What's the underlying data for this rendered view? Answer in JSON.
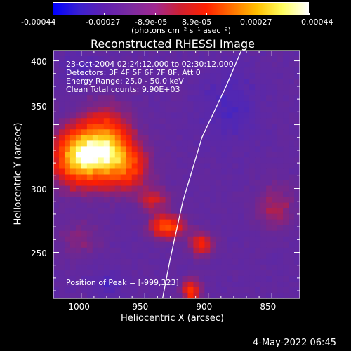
{
  "colorbar": {
    "tick_labels": [
      "-0.00044",
      "-0.00027",
      "-8.9e-05",
      "8.9e-05",
      "0.00027",
      "0.00044"
    ],
    "units_label": "(photons cm⁻² s⁻¹ asec⁻²)",
    "gradient": [
      "#0000ff",
      "#3a20d0",
      "#6020b0",
      "#7a2aa0",
      "#a02890",
      "#d02030",
      "#ff2000",
      "#ff7000",
      "#ffc000",
      "#ffff60",
      "#ffffff"
    ]
  },
  "plot": {
    "title": "Reconstructed RHESSI Image",
    "xlabel": "Heliocentric X (arcsec)",
    "ylabel": "Heliocentric Y (arcsec)",
    "x_ticks": [
      "-1000",
      "-950",
      "-900",
      "-850"
    ],
    "y_ticks": [
      "400",
      "350",
      "300",
      "250"
    ],
    "xlim": [
      -1022,
      -828
    ],
    "ylim": [
      214,
      408
    ],
    "info_lines": [
      "23-Oct-2004 02:24:12.000 to 02:30:12.000",
      "Detectors: 3F 4F 5F 6F 7F 8F, Att 0",
      "Energy Range: 25.0 - 50.0 keV",
      "Clean    Total counts: 9.90E+03"
    ],
    "peak_label": "Position of Peak = [-999,323]",
    "peak": [
      -999,
      323
    ]
  },
  "footer": {
    "timestamp": "4-May-2022 06:45"
  },
  "colors": {
    "background": "#000000",
    "axes": "#ffffff",
    "limb_line": "#ffffff",
    "image_base": "#5a2aa6"
  }
}
